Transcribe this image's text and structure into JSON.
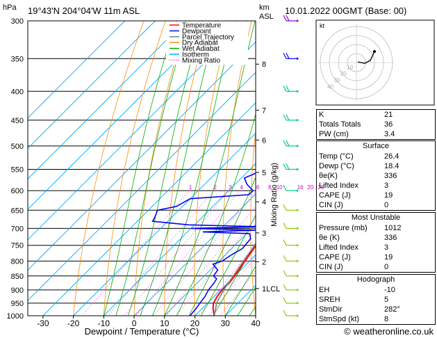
{
  "header": {
    "location": "19°43'N  204°04'W  11m  ASL",
    "datetime": "10.01.2022  00GMT  (Base: 00)",
    "hpa_label": "hPa",
    "km_label": "km\nASL"
  },
  "footer": {
    "credit": "© weatheronline.co.uk"
  },
  "chart_data": {
    "type": "line",
    "title": "",
    "xlabel": "Dewpoint / Temperature (°C)",
    "ylabel": "hPa",
    "y2label": "Mixing Ratio (g/kg)",
    "xlim": [
      -35,
      40
    ],
    "ylim": [
      1000,
      300
    ],
    "pressure_ticks": [
      300,
      350,
      400,
      450,
      500,
      550,
      600,
      650,
      700,
      750,
      800,
      850,
      900,
      950,
      1000
    ],
    "temperature_ticks": [
      -30,
      -20,
      -10,
      0,
      10,
      20,
      30,
      40
    ],
    "km_ticks": [
      {
        "label": "8",
        "p": 358
      },
      {
        "label": "7",
        "p": 432
      },
      {
        "label": "6",
        "p": 488
      },
      {
        "label": "5",
        "p": 557
      },
      {
        "label": "4",
        "p": 628
      },
      {
        "label": "3",
        "p": 713
      },
      {
        "label": "2",
        "p": 802
      },
      {
        "label": "1LCL",
        "p": 895
      }
    ],
    "mixing_ratio_labels": [
      "1",
      "2",
      "3",
      "4",
      "6",
      "8",
      "10",
      "16",
      "20",
      "25"
    ],
    "legend": {
      "placement": "top-left",
      "entries": [
        {
          "name": "Temperature",
          "color": "#ff0000",
          "style": "solid"
        },
        {
          "name": "Dewpoint",
          "color": "#0000ff",
          "style": "solid"
        },
        {
          "name": "Parcel Trajectory",
          "color": "#808080",
          "style": "solid"
        },
        {
          "name": "Dry Adiabat",
          "color": "#ff8c00",
          "style": "solid"
        },
        {
          "name": "Wet Adiabat",
          "color": "#00aa00",
          "style": "solid"
        },
        {
          "name": "Isotherm",
          "color": "#00aaff",
          "style": "solid"
        },
        {
          "name": "Mixing Ratio",
          "color": "#ff00ff",
          "style": "dotted"
        }
      ]
    },
    "series": [
      {
        "name": "Temperature",
        "color": "#ff0000",
        "points": [
          [
            1000,
            26.4
          ],
          [
            970,
            23.5
          ],
          [
            950,
            22
          ],
          [
            925,
            21
          ],
          [
            900,
            20.5
          ],
          [
            875,
            20.5
          ],
          [
            850,
            20
          ],
          [
            800,
            18.5
          ],
          [
            750,
            17
          ],
          [
            720,
            15.5
          ],
          [
            700,
            16
          ],
          [
            680,
            16.5
          ],
          [
            650,
            16
          ],
          [
            600,
            12.5
          ],
          [
            550,
            8
          ],
          [
            500,
            2.5
          ],
          [
            450,
            -4
          ],
          [
            400,
            -11
          ],
          [
            370,
            -15.5
          ],
          [
            350,
            -20
          ],
          [
            325,
            -24
          ],
          [
            300,
            -29
          ]
        ]
      },
      {
        "name": "Dewpoint",
        "color": "#0000ff",
        "points": [
          [
            1000,
            18.4
          ],
          [
            970,
            18
          ],
          [
            950,
            17.5
          ],
          [
            925,
            17
          ],
          [
            900,
            16
          ],
          [
            875,
            15.5
          ],
          [
            860,
            15
          ],
          [
            850,
            13
          ],
          [
            830,
            12.5
          ],
          [
            810,
            9
          ],
          [
            800,
            11
          ],
          [
            780,
            12
          ],
          [
            760,
            13.5
          ],
          [
            730,
            13
          ],
          [
            715,
            11
          ],
          [
            710,
            -5
          ],
          [
            705,
            12
          ],
          [
            700,
            -10
          ],
          [
            695,
            12
          ],
          [
            690,
            -12
          ],
          [
            680,
            -25
          ],
          [
            670,
            -25.5
          ],
          [
            650,
            -27
          ],
          [
            640,
            -22
          ],
          [
            620,
            -20
          ],
          [
            610,
            -2
          ],
          [
            600,
            -2
          ],
          [
            585,
            -6
          ],
          [
            570,
            -9
          ],
          [
            545,
            -4
          ],
          [
            520,
            -5
          ],
          [
            500,
            -5
          ],
          [
            470,
            -3
          ],
          [
            440,
            -2
          ],
          [
            420,
            -5
          ],
          [
            400,
            -2
          ],
          [
            380,
            -5
          ],
          [
            350,
            -17
          ],
          [
            330,
            -26
          ],
          [
            320,
            -24
          ],
          [
            310,
            -23
          ],
          [
            300,
            -23
          ]
        ]
      },
      {
        "name": "Parcel Trajectory",
        "color": "#808080",
        "points": [
          [
            1000,
            26.4
          ],
          [
            950,
            23
          ],
          [
            900,
            21
          ],
          [
            850,
            19.5
          ],
          [
            800,
            18
          ],
          [
            750,
            16.5
          ],
          [
            700,
            15
          ],
          [
            650,
            13
          ],
          [
            600,
            10.5
          ],
          [
            550,
            7.5
          ],
          [
            500,
            4
          ],
          [
            450,
            0
          ],
          [
            400,
            -5.5
          ],
          [
            350,
            -12
          ],
          [
            300,
            -20
          ]
        ]
      }
    ]
  },
  "hodograph": {
    "unit_label": "kt",
    "ring_labels": [
      "10",
      "20",
      "30",
      "40"
    ]
  },
  "indices": {
    "rows": [
      {
        "label": "K",
        "value": "21"
      },
      {
        "label": "Totals Totals",
        "value": "36"
      },
      {
        "label": "PW (cm)",
        "value": "3.4"
      }
    ]
  },
  "surface": {
    "title": "Surface",
    "rows": [
      {
        "label": "Temp (°C)",
        "value": "26.4"
      },
      {
        "label": "Dewp (°C)",
        "value": "18.4"
      },
      {
        "label": "θe(K)",
        "value": "336"
      },
      {
        "label": "Lifted Index",
        "value": "3"
      },
      {
        "label": "CAPE (J)",
        "value": "19"
      },
      {
        "label": "CIN (J)",
        "value": "0"
      }
    ]
  },
  "most_unstable": {
    "title": "Most Unstable",
    "rows": [
      {
        "label": "Pressure (mb)",
        "value": "1012"
      },
      {
        "label": "θe (K)",
        "value": "336"
      },
      {
        "label": "Lifted Index",
        "value": "3"
      },
      {
        "label": "CAPE (J)",
        "value": "19"
      },
      {
        "label": "CIN (J)",
        "value": "0"
      }
    ]
  },
  "hodograph_stats": {
    "title": "Hodograph",
    "rows": [
      {
        "label": "EH",
        "value": "-10"
      },
      {
        "label": "SREH",
        "value": "5"
      },
      {
        "label": "StmDir",
        "value": "282°"
      },
      {
        "label": "StmSpd (kt)",
        "value": "8"
      }
    ]
  }
}
